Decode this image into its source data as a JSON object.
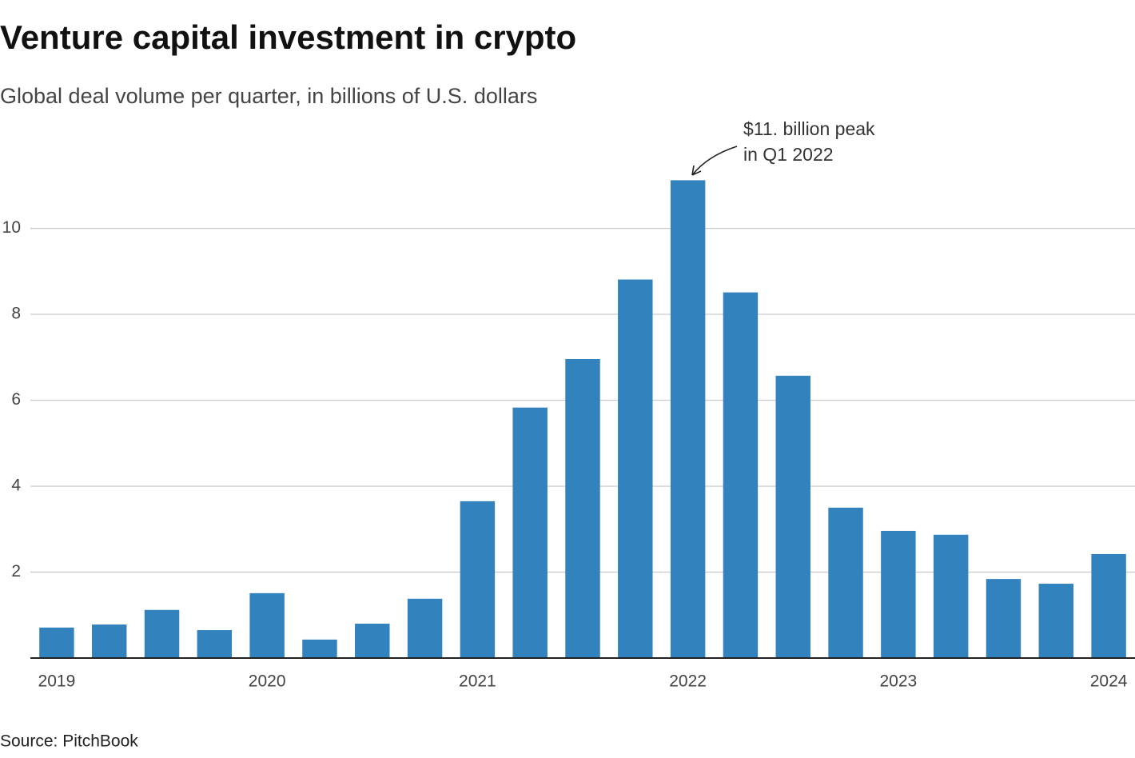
{
  "chart_data": {
    "type": "bar",
    "title": "Venture capital investment in crypto",
    "subtitle": "Global deal volume per quarter, in billions of U.S. dollars",
    "source": "Source: PitchBook",
    "annotation": [
      "$11. billion peak",
      "in Q1 2022"
    ],
    "categories": [
      "2019",
      null,
      null,
      null,
      "2020",
      null,
      null,
      null,
      "2021",
      null,
      null,
      null,
      "2022",
      null,
      null,
      null,
      "2023",
      null,
      null,
      null,
      "2024"
    ],
    "values": [
      0.71,
      0.78,
      1.12,
      0.65,
      1.51,
      0.43,
      0.8,
      1.38,
      3.65,
      5.83,
      6.96,
      8.81,
      11.12,
      8.51,
      6.57,
      3.5,
      2.96,
      2.87,
      1.84,
      1.73,
      2.42
    ],
    "color": "#3282be",
    "ylim": [
      0,
      11.5
    ],
    "yticks": [
      2,
      4,
      6,
      8,
      10
    ],
    "grid": true
  }
}
